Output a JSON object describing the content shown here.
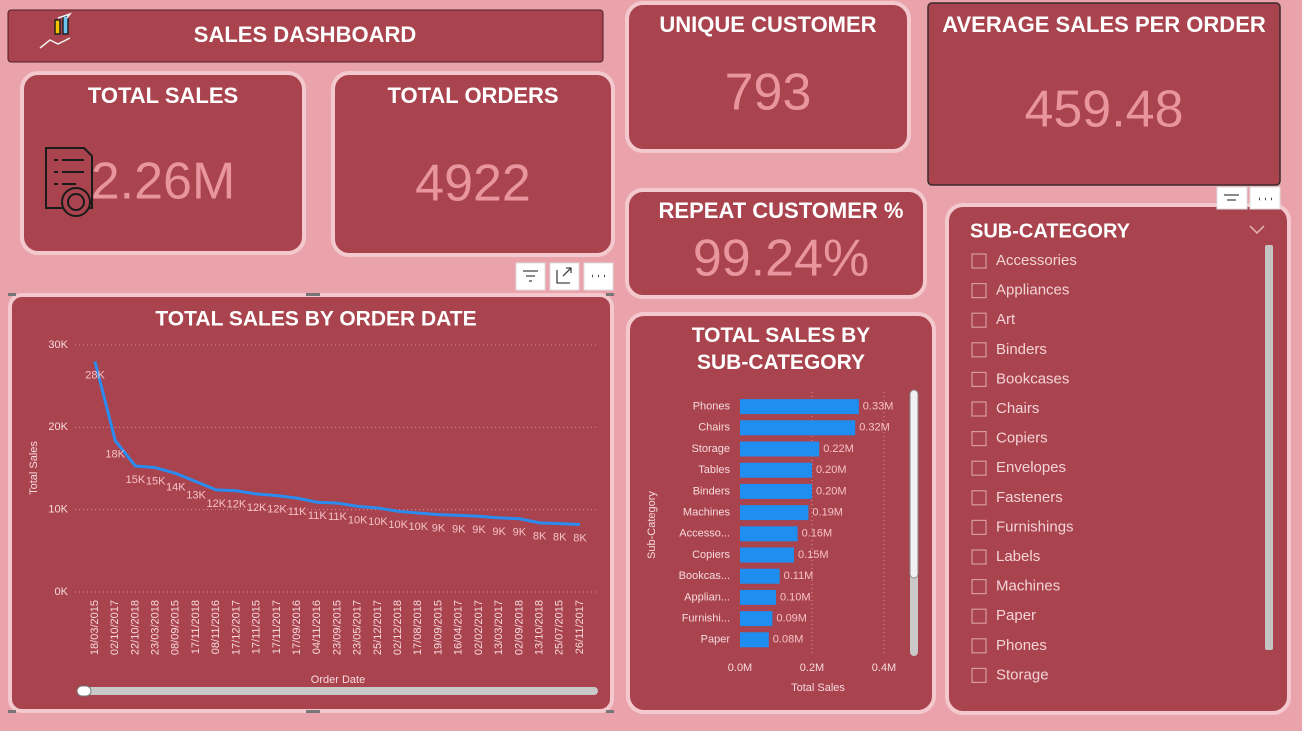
{
  "header": {
    "title": "SALES DASHBOARD"
  },
  "cards": [
    {
      "title": "TOTAL SALES",
      "value": "2.26M"
    },
    {
      "title": "TOTAL ORDERS",
      "value": 4922
    },
    {
      "title": "UNIQUE CUSTOMER",
      "value": 793
    },
    {
      "title": "AVERAGE SALES PER ORDER",
      "value": 459.48
    },
    {
      "title": "REPEAT CUSTOMER %",
      "value": "99.24%"
    }
  ],
  "chart_data": [
    {
      "type": "line",
      "title": "TOTAL SALES BY ORDER DATE",
      "x_label": "Order Date",
      "y_label": "Total Sales",
      "color": "#2b8cf0",
      "grid": true,
      "categories": [
        "18/03/2015",
        "02/10/2017",
        "22/10/2018",
        "23/03/2018",
        "08/09/2015",
        "17/11/2018",
        "08/11/2016",
        "17/12/2017",
        "17/11/2015",
        "17/11/2017",
        "17/09/2016",
        "04/11/2016",
        "23/09/2015",
        "23/05/2017",
        "25/12/2017",
        "02/12/2018",
        "17/08/2018",
        "19/09/2015",
        "16/04/2017",
        "02/02/2017",
        "13/03/2017",
        "02/09/2018",
        "13/10/2018",
        "25/07/2015",
        "26/11/2017"
      ],
      "values": [
        28000,
        18400,
        15300,
        15100,
        14400,
        13400,
        12400,
        12300,
        11900,
        11700,
        11400,
        10900,
        10800,
        10400,
        10200,
        9800,
        9600,
        9400,
        9300,
        9200,
        9000,
        8900,
        8400,
        8300,
        8200
      ],
      "value_labels": [
        "28K",
        "18K",
        "15K",
        "15K",
        "14K",
        "13K",
        "12K",
        "12K",
        "12K",
        "12K",
        "11K",
        "11K",
        "11K",
        "10K",
        "10K",
        "10K",
        "10K",
        "9K",
        "9K",
        "9K",
        "9K",
        "9K",
        "8K",
        "8K",
        "8K"
      ],
      "ylim": [
        0,
        30000
      ],
      "yticks": [
        {
          "value": 0,
          "label": "0K"
        },
        {
          "value": 10000,
          "label": "10K"
        },
        {
          "value": 20000,
          "label": "20K"
        },
        {
          "value": 30000,
          "label": "30K"
        }
      ]
    },
    {
      "type": "hbar",
      "title": "TOTAL SALES BY SUB-CATEGORY",
      "x_label": "Total Sales",
      "y_label": "Sub-Category",
      "color": "#1f8ef1",
      "grid": true,
      "categories": [
        "Phones",
        "Chairs",
        "Storage",
        "Tables",
        "Binders",
        "Machines",
        "Accesso...",
        "Copiers",
        "Bookcas...",
        "Applian...",
        "Furnishi...",
        "Paper"
      ],
      "values": [
        330000,
        320000,
        220000,
        200000,
        200000,
        190000,
        160000,
        150000,
        110000,
        100000,
        90000,
        80000
      ],
      "value_labels": [
        "0.33M",
        "0.32M",
        "0.22M",
        "0.20M",
        "0.20M",
        "0.19M",
        "0.16M",
        "0.15M",
        "0.11M",
        "0.10M",
        "0.09M",
        "0.08M"
      ],
      "xlim": [
        0,
        400000
      ],
      "xticks": [
        {
          "value": 0,
          "label": "0.0M"
        },
        {
          "value": 200000,
          "label": "0.2M"
        },
        {
          "value": 400000,
          "label": "0.4M"
        }
      ]
    }
  ],
  "slicer": {
    "title": "SUB-CATEGORY",
    "items": [
      "Accessories",
      "Appliances",
      "Art",
      "Binders",
      "Bookcases",
      "Chairs",
      "Copiers",
      "Envelopes",
      "Fasteners",
      "Furnishings",
      "Labels",
      "Machines",
      "Paper",
      "Phones",
      "Storage"
    ]
  }
}
